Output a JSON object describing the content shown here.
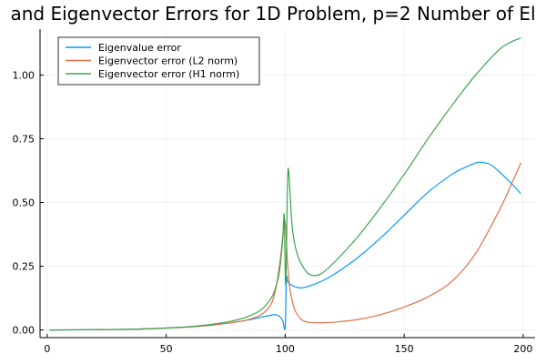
{
  "chart_data": {
    "type": "line",
    "title": "and Eigenvector Errors for 1D Problem, p=2 Number of El",
    "xlabel": "",
    "ylabel": "",
    "xlim": [
      -3,
      205
    ],
    "ylim": [
      -0.03,
      1.18
    ],
    "xticks": [
      0,
      50,
      100,
      150,
      200
    ],
    "yticks": [
      0.0,
      0.25,
      0.5,
      0.75,
      1.0
    ],
    "xtick_labels": [
      "0",
      "50",
      "100",
      "150",
      "200"
    ],
    "ytick_labels": [
      "0.00",
      "0.25",
      "0.50",
      "0.75",
      "1.00"
    ],
    "grid": true,
    "legend_position": "top-left",
    "series": [
      {
        "name": "Eigenvalue error",
        "color": "#009AFA",
        "x": [
          1,
          20,
          40,
          60,
          70,
          80,
          85,
          90,
          94,
          96,
          98,
          99,
          100,
          100.5,
          101,
          102,
          104,
          107,
          110,
          115,
          120,
          130,
          140,
          150,
          160,
          170,
          175,
          180,
          182,
          186,
          190,
          195,
          199
        ],
        "y": [
          0.0,
          0.001,
          0.004,
          0.012,
          0.02,
          0.032,
          0.04,
          0.05,
          0.058,
          0.06,
          0.05,
          0.035,
          0.01,
          0.2,
          0.19,
          0.18,
          0.17,
          0.165,
          0.172,
          0.19,
          0.215,
          0.28,
          0.36,
          0.45,
          0.54,
          0.61,
          0.635,
          0.655,
          0.658,
          0.65,
          0.62,
          0.575,
          0.535
        ]
      },
      {
        "name": "Eigenvector error (L2 norm)",
        "color": "#E26F46",
        "x": [
          1,
          20,
          40,
          60,
          70,
          80,
          85,
          90,
          94,
          96,
          98,
          99,
          99.7,
          100.3,
          101,
          102,
          104,
          107,
          110,
          115,
          120,
          130,
          140,
          150,
          160,
          170,
          180,
          190,
          195,
          199
        ],
        "y": [
          0.0,
          0.001,
          0.004,
          0.012,
          0.02,
          0.032,
          0.042,
          0.06,
          0.1,
          0.16,
          0.28,
          0.37,
          0.43,
          0.39,
          0.26,
          0.16,
          0.08,
          0.04,
          0.03,
          0.028,
          0.03,
          0.04,
          0.06,
          0.09,
          0.13,
          0.19,
          0.3,
          0.47,
          0.57,
          0.655
        ]
      },
      {
        "name": "Eigenvector error (H1 norm)",
        "color": "#3DA44D",
        "x": [
          1,
          20,
          40,
          60,
          70,
          80,
          85,
          90,
          93,
          95,
          97,
          98,
          99,
          99.6,
          100.2,
          101,
          101.5,
          103,
          105,
          108,
          111,
          115,
          120,
          130,
          140,
          150,
          160,
          170,
          180,
          190,
          195,
          199
        ],
        "y": [
          0.0,
          0.001,
          0.004,
          0.013,
          0.023,
          0.04,
          0.055,
          0.08,
          0.11,
          0.14,
          0.2,
          0.26,
          0.36,
          0.45,
          0.18,
          0.57,
          0.62,
          0.4,
          0.3,
          0.24,
          0.215,
          0.22,
          0.26,
          0.36,
          0.48,
          0.61,
          0.75,
          0.88,
          1.0,
          1.1,
          1.13,
          1.145
        ]
      }
    ]
  }
}
